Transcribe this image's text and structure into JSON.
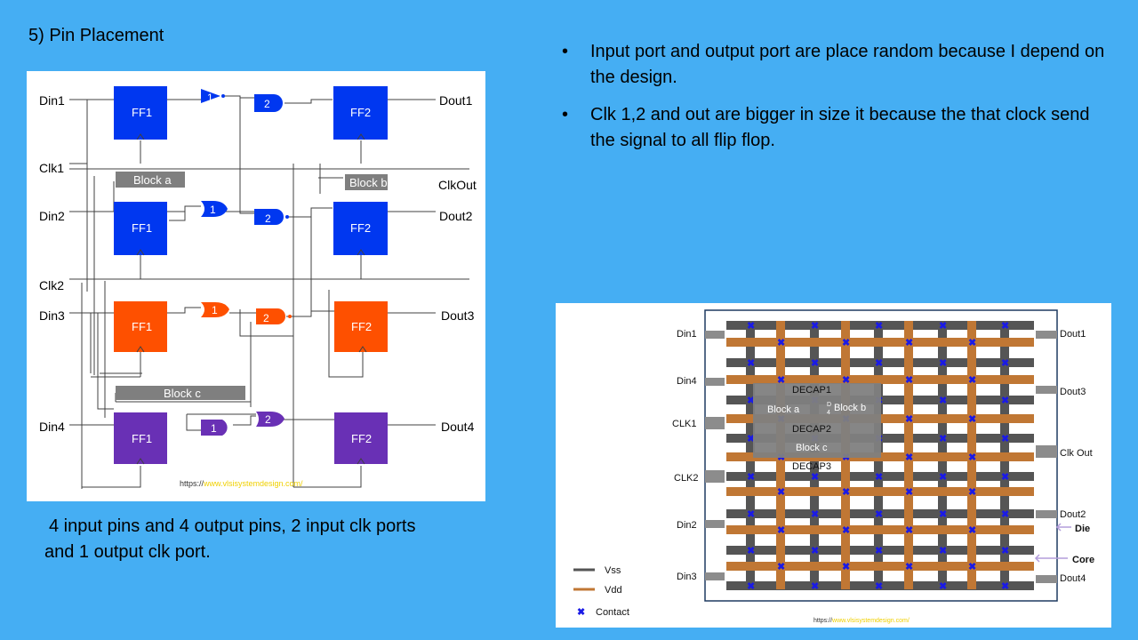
{
  "slide": {
    "title": "5) Pin Placement",
    "caption_line1": "4 input pins and 4 output pins, 2 input clk ports",
    "caption_line2": "and 1 output clk port.",
    "bullets": [
      "Input port and output port are place random because I depend on the design.",
      "Clk 1,2 and out are bigger  in size  it because the that clock send the signal to all flip flop."
    ]
  },
  "schematic": {
    "inputs": [
      "Din1",
      "Clk1",
      "Din2",
      "Clk2",
      "Din3",
      "Din4"
    ],
    "outputs": [
      "Dout1",
      "ClkOut",
      "Dout2",
      "Dout3",
      "Dout4"
    ],
    "ff1": "FF1",
    "ff2": "FF2",
    "gate1": "1",
    "gate2": "2",
    "block_a": "Block a",
    "block_b": "Block b",
    "block_c": "Block c",
    "url_prefix": "https://",
    "url_rest": "www.vlsisystemdesign.com/",
    "colors": {
      "blue": "#0037f0",
      "orange": "#fe5000",
      "purple": "#6930b5",
      "block": "#7f7f7f"
    }
  },
  "floorplan": {
    "left_pins": [
      "Din1",
      "Din4",
      "CLK1",
      "CLK2",
      "Din2",
      "Din3"
    ],
    "right_pins": [
      "Dout1",
      "Dout3",
      "Clk Out",
      "Dout2",
      "Dout4"
    ],
    "die_label": "Die",
    "core_label": "Core",
    "legend": {
      "vss": "Vss",
      "vdd": "Vdd",
      "contact": "Contact"
    },
    "blocks": {
      "dec1": "DECAP1",
      "dec2": "DECAP2",
      "dec3": "DECAP3",
      "block_a": "Block a",
      "block_b": "Block b",
      "block_c": "Block c",
      "d": "D",
      "four": "4"
    },
    "url_prefix": "https://",
    "url_rest": "www.vlsisystemdesign.com/",
    "colors": {
      "vss": "#555555",
      "vdd": "#c07734",
      "contact": "#1a1ae6"
    }
  }
}
